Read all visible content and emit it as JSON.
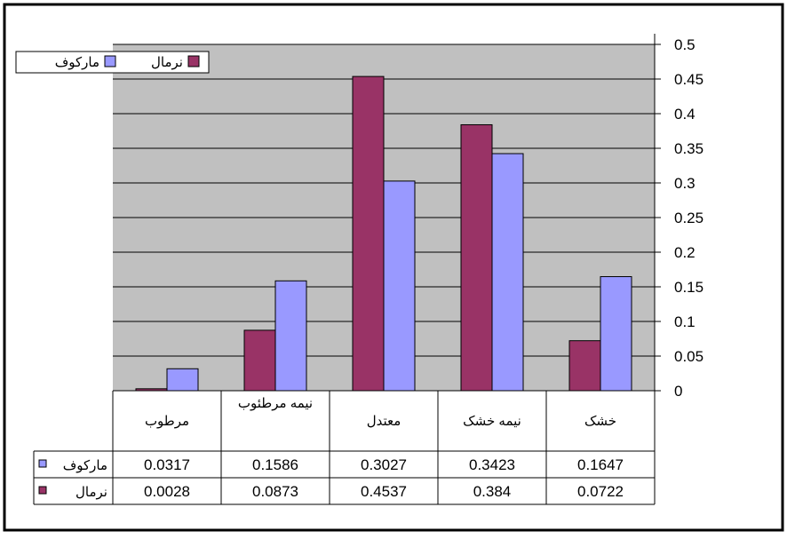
{
  "colors": {
    "normal": "#993366",
    "markov": "#9999ff",
    "plot_bg": "#c0c0c0",
    "grid": "#000000"
  },
  "chart_data": {
    "type": "bar",
    "categories": [
      "مرطوب",
      "نیمه مرطئوب",
      "معتدل",
      "نیمه خشک",
      "خشک"
    ],
    "series": [
      {
        "name": "نرمال",
        "key": "normal",
        "values": [
          0.0028,
          0.0873,
          0.4537,
          0.384,
          0.0722
        ],
        "labels": [
          "0.0028",
          "0.0873",
          "0.4537",
          "0.384",
          "0.0722"
        ]
      },
      {
        "name": "مارکوف",
        "key": "markov",
        "values": [
          0.0317,
          0.1586,
          0.3027,
          0.3423,
          0.1647
        ],
        "labels": [
          "0.0317",
          "0.1586",
          "0.3027",
          "0.3423",
          "0.1647"
        ]
      }
    ],
    "ylim": [
      0,
      0.5
    ],
    "yticks": [
      "0",
      "0.05",
      "0.1",
      "0.15",
      "0.2",
      "0.25",
      "0.3",
      "0.35",
      "0.4",
      "0.45",
      "0.5"
    ],
    "y_axis_side": "right",
    "grid": true,
    "legend": {
      "placement": "top-left",
      "entries": [
        "نرمال",
        "مارکوف"
      ]
    },
    "data_table": {
      "rows": [
        {
          "label": "مارکوف",
          "series": "markov"
        },
        {
          "label": "نرمال",
          "series": "normal"
        }
      ]
    }
  }
}
